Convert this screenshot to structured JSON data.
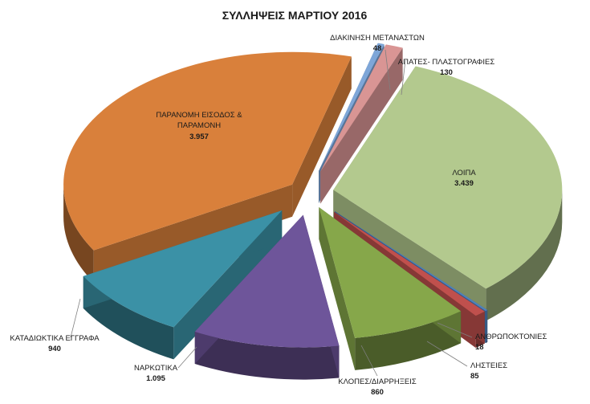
{
  "chart_data": {
    "type": "pie",
    "title": "ΣΥΛΛΗΨΕΙΣ ΜΑΡΤΙΟΥ 2016",
    "slices": [
      {
        "label": "ΔΙΑΚΙΝΗΣΗ ΜΕΤΑΝΑΣΤΩΝ",
        "value": 48,
        "value_label": "48",
        "color": "#7ea6d8"
      },
      {
        "label": "ΑΠΑΤΕΣ- ΠΛΑΣΤΟΓΡΑΦΙΕΣ",
        "value": 130,
        "value_label": "130",
        "color": "#d99594"
      },
      {
        "label": "ΛΟΙΠΑ",
        "value": 3439,
        "value_label": "3.439",
        "color": "#b3c98e"
      },
      {
        "label": "ΑΝΘΡΩΠΟΚΤΟΝΙΕΣ",
        "value": 18,
        "value_label": "18",
        "color": "#4f81bd"
      },
      {
        "label": "ΛΗΣΤΕΙΕΣ",
        "value": 85,
        "value_label": "85",
        "color": "#c0504d"
      },
      {
        "label": "ΚΛΟΠΕΣ/ΔΙΑΡΡΗΞΕΙΣ",
        "value": 860,
        "value_label": "860",
        "color": "#86a74a"
      },
      {
        "label": "ΝΑΡΚΩΤΙΚΑ",
        "value": 1095,
        "value_label": "1.095",
        "color": "#6e559a"
      },
      {
        "label": "ΚΑΤΑΔΙΩΚΤΙΚΑ ΕΓΓΡΑΦΑ",
        "value": 940,
        "value_label": "940",
        "color": "#3b91a6"
      },
      {
        "label": "ΠΑΡΑΝΟΜΗ ΕΙΣΟΔΟΣ & ΠΑΡΑΜΟΝΗ",
        "value": 3957,
        "value_label": "3.957",
        "color": "#d9803b"
      }
    ],
    "style": "3d-exploded"
  }
}
